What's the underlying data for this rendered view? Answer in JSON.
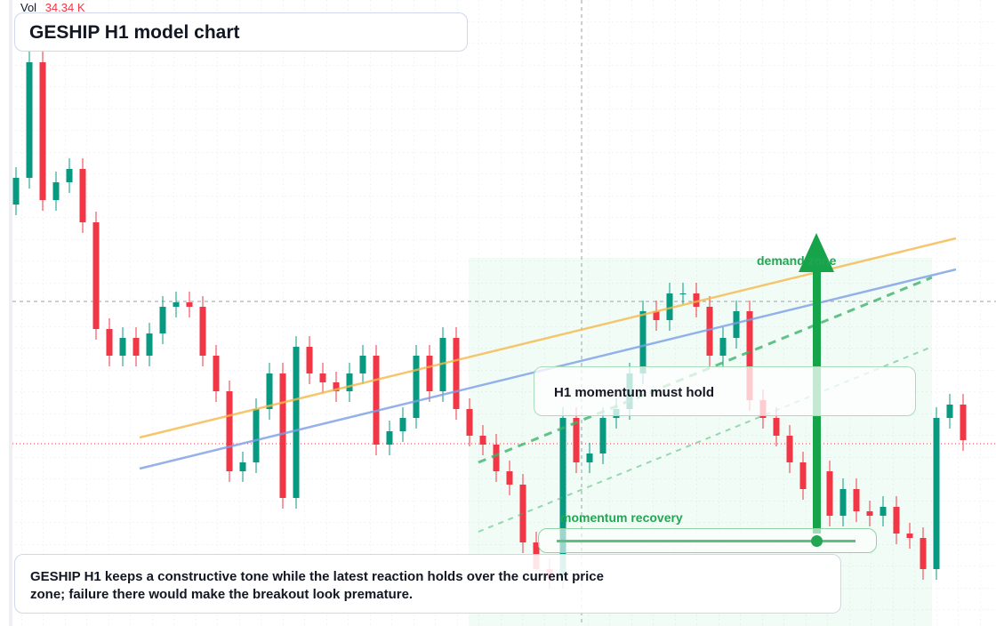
{
  "header": {
    "vol_label": "Vol",
    "vol_value": "34.34 K",
    "title": "GESHIP H1 model chart"
  },
  "chart_data": {
    "type": "candlestick",
    "up_color": "#089981",
    "down_color": "#f23645",
    "ylim": [
      0,
      70.4
    ],
    "open": [
      47.4,
      50.4,
      63.4,
      47.9,
      49.9,
      51.4,
      45.4,
      33.4,
      30.4,
      32.4,
      30.4,
      32.9,
      35.9,
      36.4,
      35.9,
      30.4,
      26.4,
      17.4,
      18.4,
      24.4,
      28.4,
      14.4,
      31.4,
      28.4,
      27.4,
      26.4,
      28.4,
      30.4,
      20.4,
      21.9,
      23.4,
      30.4,
      26.4,
      32.4,
      24.4,
      21.4,
      20.4,
      17.4,
      15.9,
      9.4,
      6.4,
      5.4,
      23.4,
      18.4,
      19.4,
      23.4,
      24.4,
      28.4,
      35.4,
      34.4,
      37.4,
      37.4,
      35.9,
      30.4,
      32.4,
      35.4,
      25.4,
      23.4,
      21.4,
      18.4,
      15.4,
      17.4,
      12.4,
      15.4,
      12.9,
      12.4,
      13.4,
      10.4,
      9.9,
      6.4,
      23.4,
      24.9
    ],
    "high": [
      51.6,
      64.6,
      64.6,
      51.1,
      52.6,
      52.6,
      46.6,
      34.6,
      33.6,
      33.6,
      34.1,
      37.1,
      37.6,
      37.6,
      37.1,
      31.6,
      27.6,
      19.6,
      25.6,
      29.6,
      29.6,
      32.6,
      32.6,
      29.6,
      28.6,
      29.6,
      31.6,
      31.6,
      23.1,
      24.6,
      31.6,
      31.6,
      33.6,
      33.6,
      25.6,
      22.6,
      21.6,
      18.6,
      17.1,
      10.6,
      7.6,
      24.6,
      24.6,
      20.6,
      24.6,
      25.6,
      29.6,
      36.6,
      36.6,
      38.6,
      38.6,
      38.6,
      37.1,
      33.6,
      36.6,
      36.6,
      26.6,
      24.6,
      22.6,
      19.6,
      18.6,
      18.6,
      16.6,
      16.6,
      14.1,
      14.6,
      14.6,
      11.6,
      11.1,
      24.6,
      26.1,
      26.1
    ],
    "low": [
      46.2,
      49.2,
      46.7,
      46.7,
      48.7,
      44.2,
      32.2,
      29.2,
      29.2,
      29.2,
      29.2,
      31.7,
      34.7,
      34.7,
      29.2,
      25.2,
      16.2,
      16.2,
      17.2,
      23.2,
      13.2,
      13.2,
      27.2,
      26.2,
      25.2,
      25.2,
      27.2,
      19.2,
      19.2,
      20.7,
      22.2,
      25.2,
      25.2,
      23.2,
      20.2,
      19.2,
      16.2,
      14.7,
      8.2,
      5.2,
      4.2,
      4.2,
      17.2,
      17.2,
      18.2,
      22.2,
      23.2,
      27.2,
      33.2,
      33.2,
      36.2,
      34.7,
      29.2,
      29.2,
      31.2,
      24.2,
      22.2,
      20.2,
      17.2,
      14.2,
      14.2,
      11.2,
      11.2,
      11.7,
      11.2,
      11.2,
      9.2,
      8.7,
      5.2,
      5.2,
      22.2,
      19.7
    ],
    "close": [
      50.4,
      63.4,
      47.9,
      49.9,
      51.4,
      45.4,
      33.4,
      30.4,
      32.4,
      30.4,
      32.9,
      35.9,
      36.4,
      35.9,
      30.4,
      26.4,
      17.4,
      18.4,
      24.4,
      28.4,
      14.4,
      31.4,
      28.4,
      27.4,
      26.4,
      28.4,
      30.4,
      20.4,
      21.9,
      23.4,
      30.4,
      26.4,
      32.4,
      24.4,
      21.4,
      20.4,
      17.4,
      15.9,
      9.4,
      6.4,
      5.4,
      23.4,
      18.4,
      19.4,
      23.4,
      24.4,
      28.4,
      35.4,
      34.4,
      37.4,
      37.4,
      35.9,
      30.4,
      32.4,
      35.4,
      25.4,
      23.4,
      21.4,
      18.4,
      15.4,
      17.4,
      12.4,
      15.4,
      12.9,
      12.4,
      13.4,
      10.4,
      9.9,
      6.4,
      23.4,
      24.9,
      20.9
    ]
  },
  "annotations": {
    "zone_label": "demand zone",
    "box_label": "H1 momentum must hold",
    "recovery_label": "momentum recovery",
    "caption": "GESHIP H1 keeps a constructive tone while the latest reaction holds over the current price zone; failure there would make the breakout look premature."
  }
}
